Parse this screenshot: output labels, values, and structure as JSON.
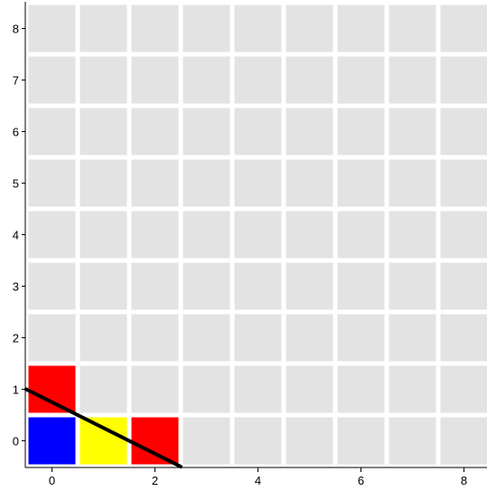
{
  "board": {
    "columns": 9,
    "rows": 9,
    "x_ticks": [
      "0",
      "2",
      "4",
      "6",
      "8"
    ],
    "y_ticks": [
      "0",
      "1",
      "2",
      "3",
      "4",
      "5",
      "6",
      "7",
      "8"
    ],
    "colors": {
      "empty_cell": "#e3e3e3",
      "grid_line": "#ffffff",
      "axis": "#000000",
      "blue": "#0000ff",
      "yellow": "#ffff00",
      "red": "#ff0000",
      "aim_line": "#000000"
    },
    "pieces": [
      {
        "col": 0,
        "row": 0,
        "color": "blue"
      },
      {
        "col": 1,
        "row": 0,
        "color": "yellow"
      },
      {
        "col": 2,
        "row": 0,
        "color": "red"
      },
      {
        "col": 0,
        "row": 1,
        "color": "red"
      }
    ],
    "aim_line": {
      "from": [
        -0.5,
        1.0
      ],
      "to": [
        2.5,
        -0.5
      ]
    }
  }
}
